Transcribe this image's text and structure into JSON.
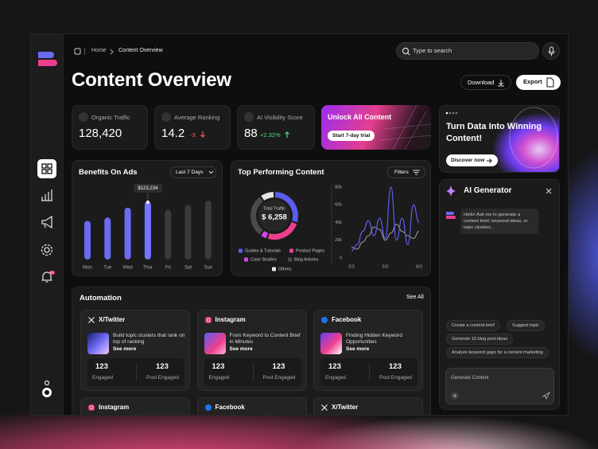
{
  "notification_badge": "9+",
  "breadcrumb": [
    "Home",
    "Content Overview"
  ],
  "search": {
    "placeholder": "Type to search"
  },
  "title": "Content Overview",
  "actions": [
    "Download",
    "Export"
  ],
  "stats": [
    {
      "label": "Organic Traffic",
      "value": "128,420"
    },
    {
      "label": "Average Ranking",
      "value": "14.2",
      "change": "-3"
    },
    {
      "label": "AI Visibility Score",
      "value": "88",
      "change": "+2.32%"
    }
  ],
  "unlock": {
    "title": "Unlock All Content",
    "button": "Start 7-day trial"
  },
  "promo": {
    "title": "Turn Data Into Winning Content!",
    "button": "Discover now"
  },
  "ai": {
    "title": "AI Generator",
    "message": "Hello! Ask me to generate a content brief, keyword ideas, or topic clusters...",
    "suggestions": [
      "Create a content brief",
      "Suggest topic",
      "Generate 10 blog post ideas",
      "Analyze keyword gaps for a content marketing"
    ],
    "input": "Generate Content"
  },
  "automation": {
    "title": "Automation",
    "link": "See All",
    "cards": [
      {
        "platform": "X/Twitter",
        "text": "Build topic clusters that rank on top of ranking",
        "link": "See more",
        "stats": [
          {
            "value": "123",
            "label": "Engaged"
          },
          {
            "value": "123",
            "label": "Post Engaged"
          }
        ]
      },
      {
        "platform": "Instagram",
        "text": "From Keyword to Content Brief in Minutes",
        "link": "See more",
        "stats": [
          {
            "value": "123",
            "label": "Engaged"
          },
          {
            "value": "123",
            "label": "Post Engaged"
          }
        ]
      },
      {
        "platform": "Facebook",
        "text": "Finding Hidden Keyword Opportunities",
        "link": "See more",
        "stats": [
          {
            "value": "123",
            "label": "Engaged"
          },
          {
            "value": "123",
            "label": "Post Engaged"
          }
        ]
      }
    ],
    "more": [
      "Instagram",
      "Facebook",
      "X/Twitter"
    ]
  },
  "chart_data": [
    {
      "type": "bar",
      "title": "Benefits On Ads",
      "dropdown": "Last 7 Days",
      "categories": [
        "Mon",
        "Tue",
        "Wed",
        "Thur",
        "Fri",
        "Sat",
        "Sun"
      ],
      "values": [
        82000,
        89000,
        110000,
        123234,
        106000,
        116000,
        125000
      ],
      "value_labels": [
        null,
        null,
        null,
        "$123,234",
        null,
        null,
        null
      ],
      "colors": [
        "#6b6bf2",
        "#6b6bf2",
        "#6b6bf2",
        "#7474ff",
        "#3a3a3a",
        "#3a3a3a",
        "#3a3a3a"
      ]
    },
    {
      "type": "pie",
      "title": "Top Performing Content",
      "filter": "Filters",
      "center_label": "Total Traffic",
      "center_value": "$ 6,258",
      "categories": [
        "Guides & Tutorials",
        "Product Pages",
        "Case Studies",
        "Blog Articles",
        "Others"
      ],
      "values": [
        30,
        25,
        5,
        30,
        10
      ],
      "colors": [
        "#5b5cf0",
        "#ee3f8f",
        "#d946ef",
        "#4a4a4a",
        "#e5e5e5"
      ]
    },
    {
      "type": "line",
      "categories": [
        "2/3",
        null,
        null,
        null,
        null,
        null,
        "5/3",
        null,
        null,
        null,
        null,
        null,
        "8/3"
      ],
      "series": [
        {
          "color": "#5b5cf0",
          "values": [
            8000,
            15000,
            30000,
            42000,
            25000,
            45000,
            22000,
            80000,
            20000,
            45000,
            15000,
            60000,
            40000
          ]
        },
        {
          "color": "#8a8a8a",
          "values": [
            12000,
            10000,
            18000,
            25000,
            35000,
            32000,
            20000,
            28000,
            38000,
            30000,
            25000,
            22000,
            30000
          ]
        }
      ],
      "ylim": [
        0,
        80000
      ],
      "yticks": [
        0,
        {
          "value": 20000,
          "label": "20k"
        },
        {
          "value": 40000,
          "label": "40k"
        },
        {
          "value": 60000,
          "label": "60k"
        },
        {
          "value": 80000,
          "label": "80k"
        }
      ]
    }
  ]
}
